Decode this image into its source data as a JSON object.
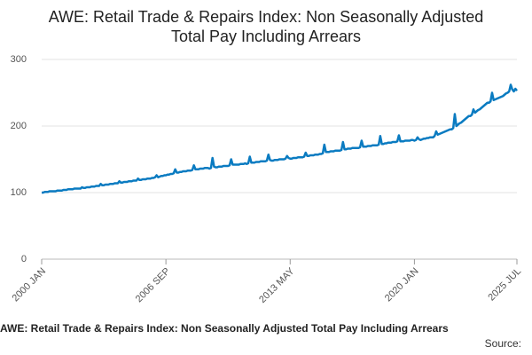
{
  "chart_data": {
    "type": "line",
    "title": "AWE: Retail Trade & Repairs Index: Non Seasonally Adjusted Total Pay Including Arrears",
    "source_label": "Source:",
    "color": "#0a7bc1",
    "grid": true,
    "ylim": [
      0,
      300
    ],
    "yticks": [
      0,
      100,
      200,
      300
    ],
    "categories": [
      "2000 JAN",
      null,
      null,
      null,
      null,
      null,
      null,
      null,
      null,
      null,
      null,
      null,
      null,
      null,
      null,
      null,
      null,
      null,
      null,
      null,
      null,
      null,
      null,
      null,
      null,
      null,
      null,
      null,
      null,
      null,
      null,
      null,
      null,
      null,
      null,
      null,
      null,
      null,
      null,
      null,
      null,
      null,
      null,
      null,
      null,
      null,
      null,
      null,
      null,
      null,
      null,
      null,
      null,
      null,
      null,
      null,
      null,
      null,
      null,
      null,
      null,
      null,
      null,
      null,
      null,
      null,
      null,
      null,
      null,
      null,
      null,
      null,
      null,
      null,
      null,
      null,
      null,
      null,
      null,
      null,
      "2006 SEP",
      null,
      null,
      null,
      null,
      null,
      null,
      null,
      null,
      null,
      null,
      null,
      null,
      null,
      null,
      null,
      null,
      null,
      null,
      null,
      null,
      null,
      null,
      null,
      null,
      null,
      null,
      null,
      null,
      null,
      null,
      null,
      null,
      null,
      null,
      null,
      null,
      null,
      null,
      null,
      null,
      null,
      null,
      null,
      null,
      null,
      null,
      null,
      null,
      null,
      null,
      null,
      null,
      null,
      null,
      null,
      null,
      null,
      null,
      null,
      null,
      null,
      null,
      null,
      null,
      null,
      null,
      null,
      null,
      null,
      null,
      null,
      null,
      null,
      null,
      null,
      null,
      null,
      null,
      null,
      "2013 MAY",
      null,
      null,
      null,
      null,
      null,
      null,
      null,
      null,
      null,
      null,
      null,
      null,
      null,
      null,
      null,
      null,
      null,
      null,
      null,
      null,
      null,
      null,
      null,
      null,
      null,
      null,
      null,
      null,
      null,
      null,
      null,
      null,
      null,
      null,
      null,
      null,
      null,
      null,
      null,
      null,
      null,
      null,
      null,
      null,
      null,
      null,
      null,
      null,
      null,
      null,
      null,
      null,
      null,
      null,
      null,
      null,
      null,
      null,
      null,
      null,
      null,
      null,
      null,
      null,
      null,
      null,
      null,
      null,
      null,
      null,
      null,
      null,
      null,
      null,
      null,
      null,
      null,
      null,
      null,
      "2020 JAN",
      null,
      null,
      null,
      null,
      null,
      null,
      null,
      null,
      null,
      null,
      null,
      null,
      null,
      null,
      null,
      null,
      null,
      null,
      null,
      null,
      null,
      null,
      null,
      null,
      null,
      null,
      null,
      null,
      null,
      null,
      null,
      null,
      null,
      null,
      null,
      null,
      null,
      null,
      null,
      null,
      null,
      null,
      null,
      null,
      null,
      null,
      null,
      null,
      null,
      null,
      null,
      null,
      null,
      null,
      null,
      null,
      null,
      null,
      null,
      null,
      null,
      null,
      null,
      null,
      null,
      "2025 JUL"
    ],
    "values": [
      100,
      100,
      101,
      101,
      101,
      102,
      102,
      102,
      102,
      102,
      103,
      103,
      103,
      103,
      104,
      104,
      104,
      105,
      105,
      105,
      105,
      106,
      106,
      106,
      106,
      106,
      108,
      107,
      107,
      108,
      108,
      108,
      109,
      109,
      109,
      110,
      110,
      110,
      113,
      111,
      111,
      112,
      112,
      112,
      113,
      113,
      113,
      114,
      114,
      114,
      117,
      115,
      115,
      116,
      116,
      116,
      117,
      117,
      117,
      118,
      118,
      118,
      121,
      119,
      119,
      120,
      120,
      120,
      121,
      121,
      121,
      122,
      122,
      123,
      126,
      123,
      124,
      125,
      125,
      126,
      126,
      127,
      127,
      128,
      128,
      129,
      135,
      130,
      130,
      131,
      131,
      132,
      132,
      132,
      133,
      133,
      133,
      134,
      141,
      135,
      135,
      135,
      136,
      136,
      136,
      137,
      137,
      137,
      136,
      137,
      152,
      139,
      138,
      138,
      139,
      139,
      139,
      140,
      140,
      140,
      140,
      141,
      150,
      142,
      142,
      142,
      142,
      142,
      143,
      143,
      143,
      144,
      143,
      144,
      154,
      145,
      145,
      145,
      146,
      146,
      146,
      147,
      147,
      147,
      147,
      148,
      157,
      149,
      148,
      148,
      149,
      149,
      149,
      150,
      150,
      150,
      150,
      151,
      155,
      152,
      151,
      151,
      152,
      152,
      152,
      153,
      153,
      153,
      153,
      154,
      160,
      155,
      155,
      156,
      156,
      156,
      157,
      157,
      157,
      158,
      158,
      159,
      172,
      161,
      161,
      161,
      162,
      162,
      162,
      163,
      163,
      163,
      163,
      164,
      176,
      165,
      165,
      166,
      166,
      166,
      167,
      167,
      167,
      167,
      167,
      168,
      178,
      169,
      169,
      169,
      170,
      170,
      170,
      171,
      171,
      171,
      171,
      172,
      185,
      173,
      173,
      174,
      174,
      175,
      175,
      175,
      176,
      176,
      176,
      177,
      186,
      177,
      177,
      177,
      178,
      178,
      178,
      178,
      179,
      179,
      178,
      179,
      183,
      180,
      179,
      180,
      181,
      181,
      182,
      182,
      183,
      183,
      183,
      185,
      192,
      187,
      188,
      189,
      190,
      191,
      192,
      193,
      194,
      195,
      195,
      197,
      218,
      200,
      202,
      204,
      205,
      207,
      209,
      211,
      213,
      215,
      215,
      217,
      225,
      220,
      222,
      224,
      225,
      227,
      229,
      231,
      233,
      235,
      235,
      237,
      250,
      239,
      240,
      241,
      242,
      243,
      244,
      245,
      247,
      249,
      250,
      252,
      262,
      255,
      252,
      256,
      253
    ]
  }
}
